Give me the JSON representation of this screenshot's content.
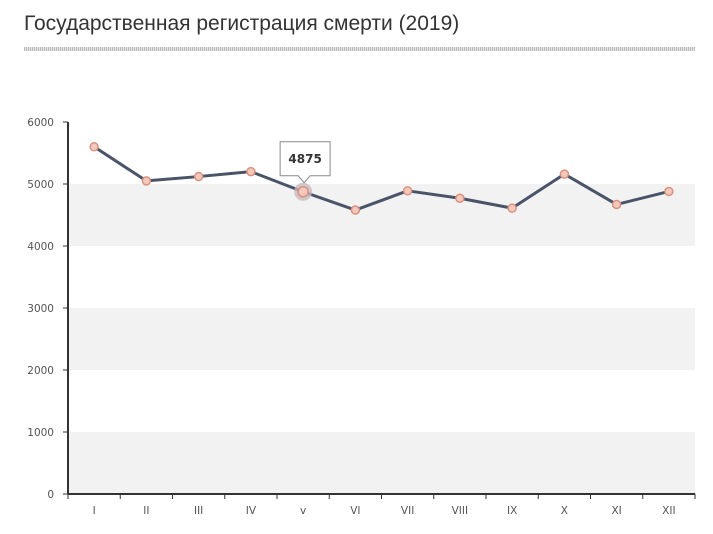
{
  "title": "Государственная регистрация смерти (2019)",
  "chart_data": {
    "type": "line",
    "categories": [
      "I",
      "II",
      "III",
      "IV",
      "v",
      "VI",
      "VII",
      "VIII",
      "IX",
      "X",
      "XI",
      "XII"
    ],
    "series": [
      {
        "values": [
          5600,
          5050,
          5120,
          5200,
          4875,
          4580,
          4890,
          4770,
          4610,
          5160,
          4670,
          4880
        ]
      }
    ],
    "ylim": [
      0,
      6000
    ],
    "yticks": [
      0,
      1000,
      2000,
      3000,
      4000,
      5000,
      6000
    ],
    "grid": "alternating horizontal bands",
    "tooltip": {
      "category": "v",
      "value": "4875"
    },
    "colors": {
      "line": "#4a5468",
      "marker_fill": "#f3c9bd",
      "marker_stroke": "#d9917f",
      "band": "#f2f2f2",
      "axis": "#333333"
    }
  }
}
